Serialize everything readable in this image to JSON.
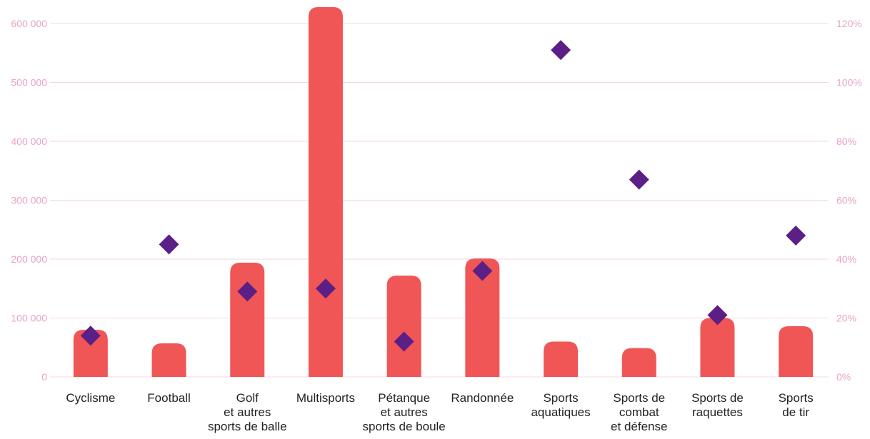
{
  "chart_data": {
    "type": "bar",
    "categories": [
      [
        "Cyclisme"
      ],
      [
        "Football"
      ],
      [
        "Golf",
        "et autres",
        "sports de balle"
      ],
      [
        "Multisports"
      ],
      [
        "Pétanque",
        "et autres",
        "sports de boule"
      ],
      [
        "Randonnée"
      ],
      [
        "Sports",
        "aquatiques"
      ],
      [
        "Sports de",
        "combat",
        "et défense"
      ],
      [
        "Sports de",
        "raquettes"
      ],
      [
        "Sports",
        "de tir"
      ]
    ],
    "series": [
      {
        "type": "bar",
        "axis": "left",
        "values": [
          80000,
          57000,
          194000,
          628000,
          172000,
          201000,
          60000,
          49000,
          100000,
          86000
        ]
      },
      {
        "type": "scatter",
        "marker": "diamond",
        "axis": "right",
        "values": [
          14,
          45,
          29,
          30,
          12,
          36,
          111,
          67,
          21,
          48
        ]
      }
    ],
    "y_left": {
      "lim": [
        0,
        600000
      ],
      "ticks": [
        0,
        100000,
        200000,
        300000,
        400000,
        500000,
        600000
      ],
      "tick_labels": [
        "0",
        "100 000",
        "200 000",
        "300 000",
        "400 000",
        "500 000",
        "600 000"
      ]
    },
    "y_right": {
      "lim": [
        0,
        120
      ],
      "ticks": [
        0,
        20,
        40,
        60,
        80,
        100,
        120
      ],
      "tick_labels": [
        "0%",
        "20%",
        "40%",
        "60%",
        "80%",
        "100%",
        "120%"
      ]
    },
    "grid": true,
    "colors": {
      "bar": "#f05656",
      "marker": "#5c1f86",
      "grid": "#f3d7e4",
      "tick_text": "#e9a3c6",
      "category_text": "#222222"
    }
  }
}
